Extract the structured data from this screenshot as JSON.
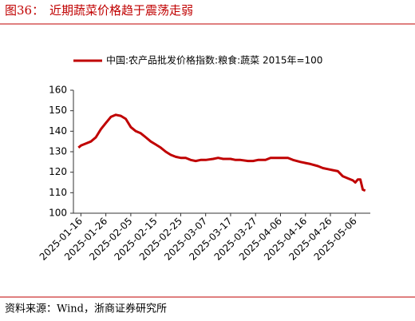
{
  "chart_data": {
    "type": "line",
    "figure_label": "图36：",
    "title": "近期蔬菜价格趋于震荡走弱",
    "source": "资料来源：Wind，浙商证券研究所",
    "x": [
      "2025-01-15",
      "2025-01-16",
      "2025-01-18",
      "2025-01-20",
      "2025-01-22",
      "2025-01-24",
      "2025-01-26",
      "2025-01-28",
      "2025-01-30",
      "2025-02-01",
      "2025-02-03",
      "2025-02-05",
      "2025-02-07",
      "2025-02-09",
      "2025-02-11",
      "2025-02-13",
      "2025-02-15",
      "2025-02-17",
      "2025-02-19",
      "2025-02-21",
      "2025-02-23",
      "2025-02-25",
      "2025-02-27",
      "2025-03-01",
      "2025-03-03",
      "2025-03-05",
      "2025-03-07",
      "2025-03-10",
      "2025-03-12",
      "2025-03-14",
      "2025-03-17",
      "2025-03-19",
      "2025-03-21",
      "2025-03-24",
      "2025-03-26",
      "2025-03-28",
      "2025-03-31",
      "2025-04-02",
      "2025-04-04",
      "2025-04-07",
      "2025-04-09",
      "2025-04-11",
      "2025-04-14",
      "2025-04-16",
      "2025-04-18",
      "2025-04-21",
      "2025-04-23",
      "2025-04-25",
      "2025-04-27",
      "2025-04-29",
      "2025-05-01",
      "2025-05-03",
      "2025-05-05",
      "2025-05-06",
      "2025-05-07",
      "2025-05-08",
      "2025-05-09",
      "2025-05-10"
    ],
    "series": [
      {
        "name": "中国:农产品批发价格指数:粮食:蔬菜 2015年=100",
        "color": "#c00000",
        "values": [
          132,
          133,
          134,
          135,
          137,
          141,
          144,
          147,
          148,
          147.5,
          146,
          142,
          140,
          139,
          137,
          135,
          133.5,
          132,
          130,
          128.5,
          127.5,
          127,
          127,
          126,
          125.5,
          126,
          126,
          126.5,
          127,
          126.5,
          126.5,
          126,
          126,
          125.5,
          125.5,
          126,
          126,
          127,
          127,
          127,
          127,
          126,
          125,
          124.5,
          124,
          123,
          122,
          121.5,
          121,
          120.5,
          118,
          117,
          116,
          115,
          116.5,
          116.5,
          111.5,
          111
        ]
      }
    ],
    "xlim": [
      "2025-01-13",
      "2025-05-12"
    ],
    "xticks": [
      "2025-01-16",
      "2025-01-26",
      "2025-02-05",
      "2025-02-15",
      "2025-02-25",
      "2025-03-07",
      "2025-03-17",
      "2025-03-27",
      "2025-04-06",
      "2025-04-16",
      "2025-04-26",
      "2025-05-06"
    ],
    "ylim": [
      100,
      160
    ],
    "yticks": [
      100,
      110,
      120,
      130,
      140,
      150,
      160
    ]
  }
}
